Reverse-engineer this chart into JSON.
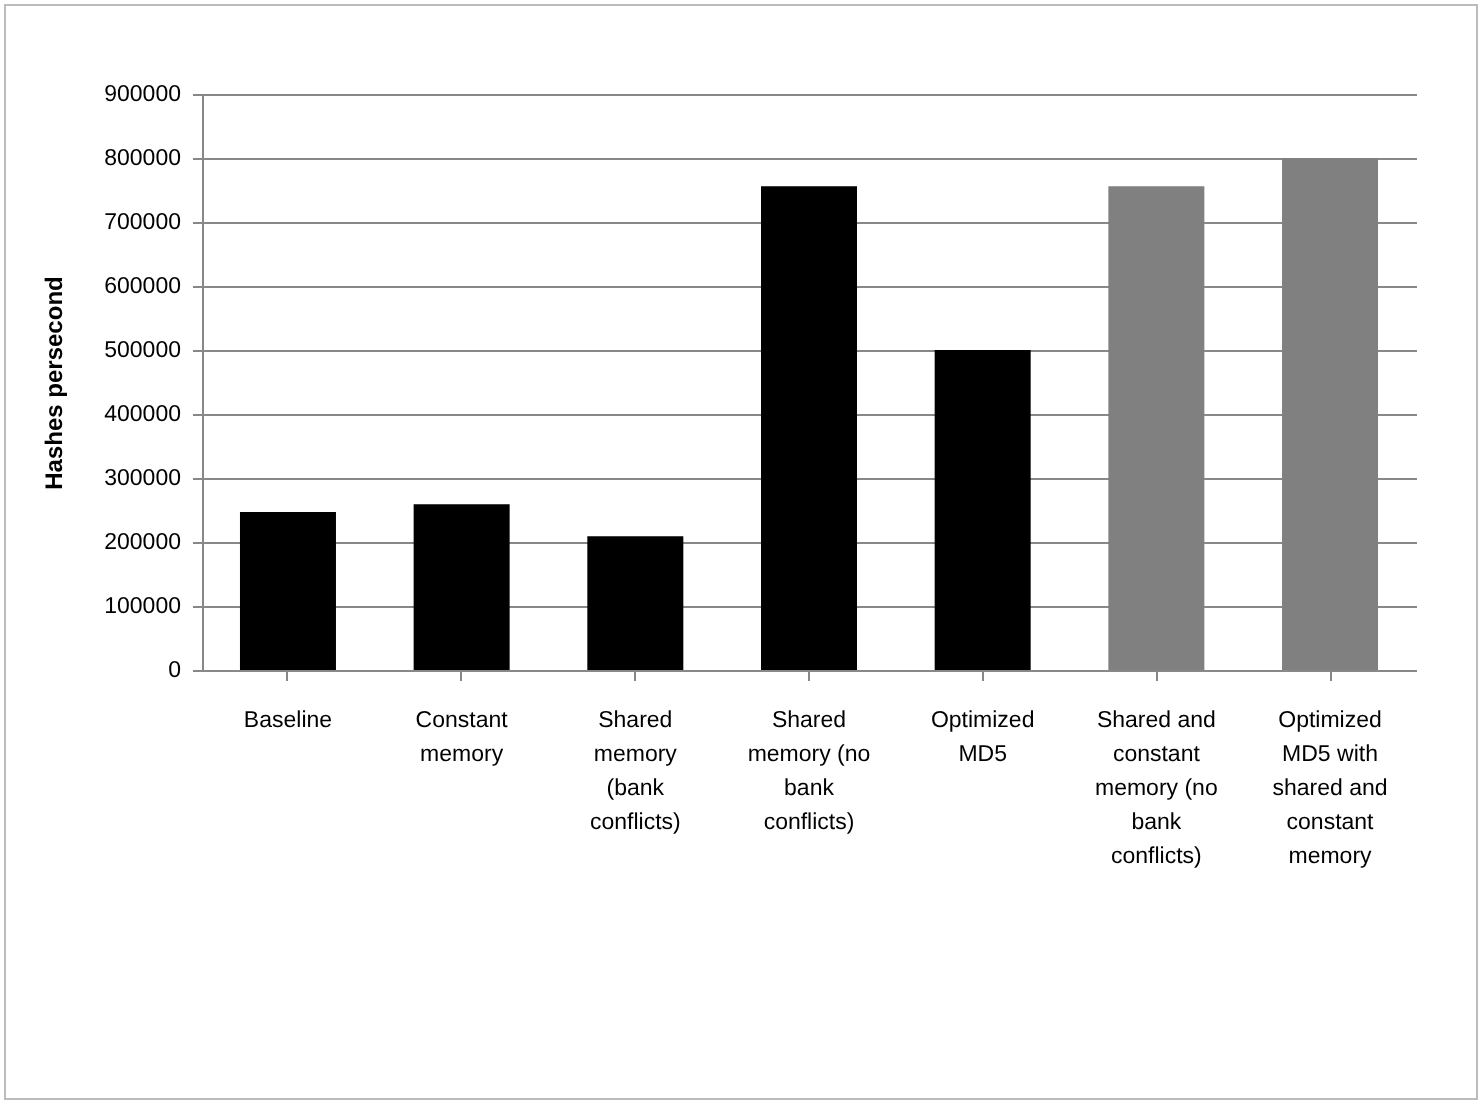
{
  "chart_data": {
    "type": "bar",
    "ylabel": "Hashes persecond",
    "categories": [
      "Baseline",
      "Constant memory",
      "Shared memory (bank conflicts)",
      "Shared memory (no bank conflicts)",
      "Optimized MD5",
      "Shared and constant memory (no bank conflicts)",
      "Optimized MD5 with shared and constant memory"
    ],
    "values": [
      247000,
      259000,
      209000,
      756000,
      500000,
      756000,
      800000
    ],
    "colors": [
      "#000000",
      "#000000",
      "#000000",
      "#000000",
      "#000000",
      "#808080",
      "#808080"
    ],
    "ylim": [
      0,
      900000
    ],
    "yticks": [
      0,
      100000,
      200000,
      300000,
      400000,
      500000,
      600000,
      700000,
      800000,
      900000
    ],
    "grid": "y"
  }
}
